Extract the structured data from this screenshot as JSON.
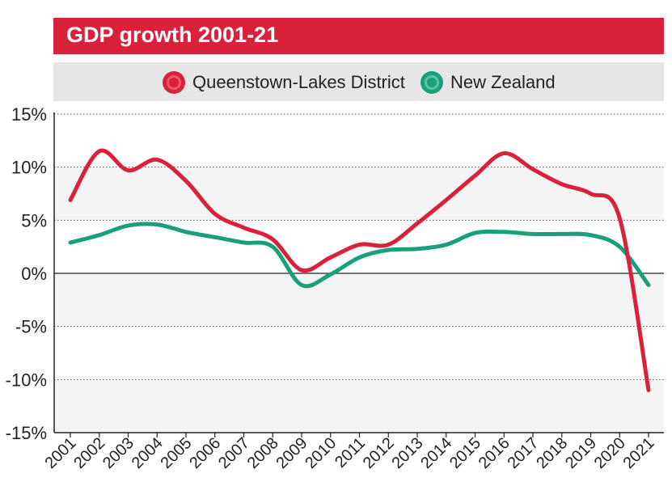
{
  "header": {
    "title": "GDP growth 2001-21"
  },
  "legend": {
    "items": [
      {
        "label": "Queenstown-Lakes District",
        "color": "#d9223a"
      },
      {
        "label": "New Zealand",
        "color": "#17a07a"
      }
    ]
  },
  "chart_data": {
    "type": "line",
    "title": "GDP growth 2001-21",
    "xlabel": "",
    "ylabel": "",
    "ylim": [
      -15,
      15
    ],
    "y_ticks": [
      "15%",
      "10%",
      "5%",
      "0%",
      "-5%",
      "-10%",
      "-15%"
    ],
    "y_tick_values": [
      15,
      10,
      5,
      0,
      -5,
      -10,
      -15
    ],
    "grid": true,
    "legend_position": "top",
    "categories": [
      "2001",
      "2002",
      "2003",
      "2004",
      "2005",
      "2006",
      "2007",
      "2008",
      "2009",
      "2010",
      "2011",
      "2012",
      "2013",
      "2014",
      "2015",
      "2016",
      "2017",
      "2018",
      "2019",
      "2020",
      "2021"
    ],
    "series": [
      {
        "name": "Queenstown-Lakes District",
        "color": "#d9223a",
        "values": [
          6.9,
          11.5,
          9.7,
          10.7,
          8.7,
          5.6,
          4.3,
          3.2,
          0.3,
          1.5,
          2.7,
          2.7,
          4.7,
          6.9,
          9.2,
          11.3,
          9.8,
          8.4,
          7.5,
          5.2,
          -11.0
        ]
      },
      {
        "name": "New Zealand",
        "color": "#17a07a",
        "values": [
          2.9,
          3.6,
          4.5,
          4.6,
          3.9,
          3.4,
          2.9,
          2.5,
          -1.1,
          -0.1,
          1.5,
          2.2,
          2.3,
          2.7,
          3.8,
          3.9,
          3.7,
          3.7,
          3.6,
          2.5,
          -1.1
        ]
      }
    ]
  }
}
